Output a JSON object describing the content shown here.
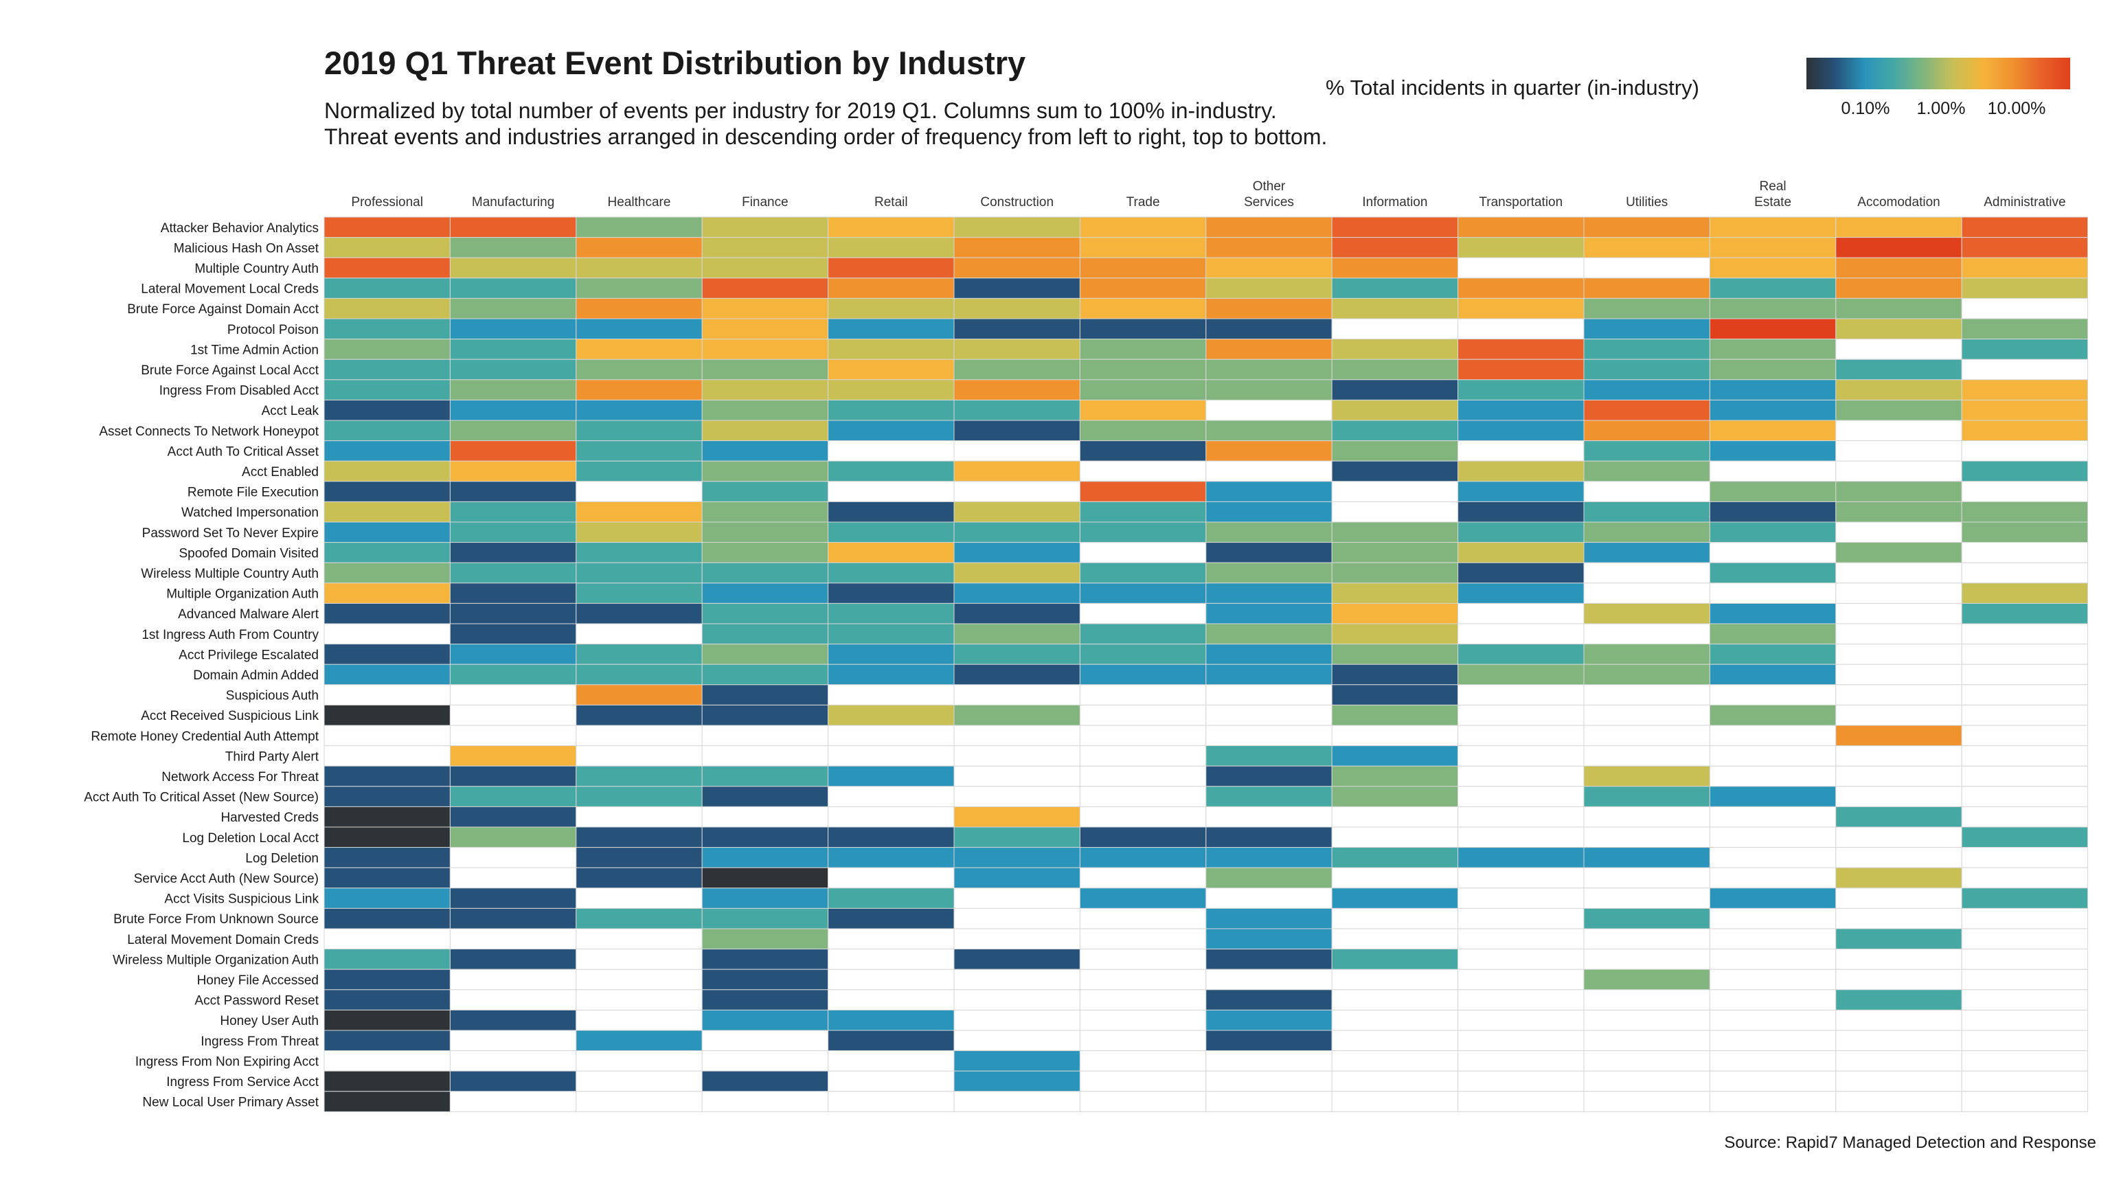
{
  "title": "2019 Q1 Threat Event Distribution by Industry",
  "subtitle": "Normalized by total number of events per industry for 2019 Q1. Columns sum to 100% in-industry.\nThreat events and industries arranged in descending order of frequency from left to right, top to bottom.",
  "legend": {
    "title": "% Total incidents in quarter (in-industry)",
    "ticks": [
      "0.10%",
      "1.00%",
      "10.00%"
    ],
    "colors": [
      "#2d3337",
      "#26527a",
      "#2a94bb",
      "#46a8a3",
      "#82b57e",
      "#c8bf55",
      "#f5b43b",
      "#f0932f",
      "#e8612a",
      "#e0411c"
    ]
  },
  "source": "Source: Rapid7 Managed Detection and Response",
  "chart_data": {
    "type": "heatmap",
    "scale": "log",
    "value_unit": "% of in-industry incidents (color level 0 = lowest … 9 = highest; null = none)",
    "columns": [
      "Professional",
      "Manufacturing",
      "Healthcare",
      "Finance",
      "Retail",
      "Construction",
      "Trade",
      "Other\nServices",
      "Information",
      "Transportation",
      "Utilities",
      "Real\nEstate",
      "Accomodation",
      "Administrative"
    ],
    "rows": [
      "Attacker Behavior Analytics",
      "Malicious Hash On Asset",
      "Multiple Country Auth",
      "Lateral Movement Local Creds",
      "Brute Force Against Domain Acct",
      "Protocol Poison",
      "1st Time Admin Action",
      "Brute Force Against Local Acct",
      "Ingress From Disabled Acct",
      "Acct Leak",
      "Asset Connects To Network Honeypot",
      "Acct Auth To Critical Asset",
      "Acct Enabled",
      "Remote File Execution",
      "Watched Impersonation",
      "Password Set To Never Expire",
      "Spoofed Domain Visited",
      "Wireless Multiple Country Auth",
      "Multiple Organization Auth",
      "Advanced Malware Alert",
      "1st Ingress Auth From Country",
      "Acct Privilege Escalated",
      "Domain Admin Added",
      "Suspicious Auth",
      "Acct Received Suspicious Link",
      "Remote Honey Credential Auth Attempt",
      "Third Party Alert",
      "Network Access For Threat",
      "Acct Auth To Critical Asset (New Source)",
      "Harvested Creds",
      "Log Deletion Local Acct",
      "Log Deletion",
      "Service Acct Auth (New Source)",
      "Acct Visits Suspicious Link",
      "Brute Force From Unknown Source",
      "Lateral Movement Domain Creds",
      "Wireless Multiple Organization Auth",
      "Honey File Accessed",
      "Acct Password Reset",
      "Honey User Auth",
      "Ingress From Threat",
      "Ingress From Non Expiring Acct",
      "Ingress From Service Acct",
      "New Local User Primary Asset"
    ],
    "levels": [
      [
        8,
        8,
        4,
        5,
        6,
        5,
        6,
        7,
        8,
        7,
        7,
        6,
        6,
        8
      ],
      [
        5,
        4,
        7,
        5,
        5,
        7,
        6,
        7,
        8,
        5,
        6,
        6,
        9,
        8
      ],
      [
        8,
        5,
        5,
        5,
        8,
        7,
        7,
        6,
        7,
        null,
        null,
        6,
        7,
        6
      ],
      [
        3,
        3,
        4,
        8,
        7,
        1,
        7,
        5,
        3,
        7,
        7,
        3,
        7,
        5
      ],
      [
        5,
        4,
        7,
        6,
        5,
        5,
        6,
        7,
        5,
        6,
        4,
        4,
        4,
        null
      ],
      [
        3,
        2,
        2,
        6,
        2,
        1,
        1,
        1,
        null,
        null,
        2,
        9,
        5,
        4
      ],
      [
        4,
        3,
        6,
        6,
        5,
        5,
        4,
        7,
        5,
        8,
        3,
        4,
        null,
        3
      ],
      [
        3,
        3,
        4,
        4,
        6,
        4,
        4,
        4,
        4,
        8,
        3,
        4,
        3,
        null
      ],
      [
        3,
        4,
        7,
        5,
        5,
        7,
        4,
        4,
        1,
        3,
        2,
        2,
        5,
        6
      ],
      [
        1,
        2,
        2,
        4,
        3,
        3,
        6,
        null,
        5,
        2,
        8,
        2,
        4,
        6
      ],
      [
        3,
        4,
        3,
        5,
        2,
        1,
        4,
        4,
        3,
        2,
        7,
        6,
        null,
        6
      ],
      [
        2,
        8,
        3,
        2,
        null,
        null,
        1,
        7,
        4,
        null,
        3,
        2,
        null,
        null
      ],
      [
        5,
        6,
        3,
        4,
        3,
        6,
        null,
        null,
        1,
        5,
        4,
        null,
        null,
        3
      ],
      [
        1,
        1,
        null,
        3,
        null,
        null,
        8,
        2,
        null,
        2,
        null,
        4,
        4,
        null
      ],
      [
        5,
        3,
        6,
        4,
        1,
        5,
        3,
        2,
        null,
        1,
        3,
        1,
        4,
        4
      ],
      [
        2,
        3,
        5,
        4,
        3,
        3,
        3,
        4,
        4,
        3,
        4,
        3,
        null,
        4
      ],
      [
        3,
        1,
        3,
        4,
        6,
        2,
        null,
        1,
        4,
        5,
        2,
        null,
        4,
        null
      ],
      [
        4,
        3,
        3,
        3,
        3,
        5,
        3,
        4,
        4,
        1,
        null,
        3,
        null,
        null
      ],
      [
        6,
        1,
        3,
        2,
        1,
        2,
        2,
        2,
        5,
        2,
        null,
        null,
        null,
        5
      ],
      [
        1,
        1,
        1,
        3,
        3,
        1,
        null,
        2,
        6,
        null,
        5,
        2,
        null,
        3
      ],
      [
        null,
        1,
        null,
        3,
        3,
        4,
        3,
        4,
        5,
        null,
        null,
        4,
        null,
        null
      ],
      [
        1,
        2,
        3,
        4,
        2,
        3,
        3,
        2,
        4,
        3,
        4,
        3,
        null,
        null
      ],
      [
        2,
        3,
        3,
        3,
        2,
        1,
        2,
        2,
        1,
        4,
        4,
        2,
        null,
        null
      ],
      [
        null,
        null,
        7,
        1,
        null,
        null,
        null,
        null,
        1,
        null,
        null,
        null,
        null,
        null
      ],
      [
        0,
        null,
        1,
        1,
        5,
        4,
        null,
        null,
        4,
        null,
        null,
        4,
        null,
        null
      ],
      [
        null,
        null,
        null,
        null,
        null,
        null,
        null,
        null,
        null,
        null,
        null,
        null,
        7,
        null
      ],
      [
        null,
        6,
        null,
        null,
        null,
        null,
        null,
        3,
        2,
        null,
        null,
        null,
        null,
        null
      ],
      [
        1,
        1,
        3,
        3,
        2,
        null,
        null,
        1,
        4,
        null,
        5,
        null,
        null,
        null
      ],
      [
        1,
        3,
        3,
        1,
        null,
        null,
        null,
        3,
        4,
        null,
        3,
        2,
        null,
        null
      ],
      [
        0,
        1,
        null,
        null,
        null,
        6,
        null,
        null,
        null,
        null,
        null,
        null,
        3,
        null
      ],
      [
        0,
        4,
        1,
        1,
        1,
        3,
        1,
        1,
        null,
        null,
        null,
        null,
        null,
        3
      ],
      [
        1,
        null,
        1,
        2,
        2,
        2,
        2,
        2,
        3,
        2,
        2,
        null,
        null,
        null
      ],
      [
        1,
        null,
        1,
        0,
        null,
        2,
        null,
        4,
        null,
        null,
        null,
        null,
        5,
        null
      ],
      [
        2,
        1,
        null,
        2,
        3,
        null,
        2,
        null,
        2,
        null,
        null,
        2,
        null,
        3
      ],
      [
        1,
        1,
        3,
        3,
        1,
        null,
        null,
        2,
        null,
        null,
        3,
        null,
        null,
        null
      ],
      [
        null,
        null,
        null,
        4,
        null,
        null,
        null,
        2,
        null,
        null,
        null,
        null,
        3,
        null
      ],
      [
        3,
        1,
        null,
        1,
        null,
        1,
        null,
        1,
        3,
        null,
        null,
        null,
        null,
        null
      ],
      [
        1,
        null,
        null,
        1,
        null,
        null,
        null,
        null,
        null,
        null,
        4,
        null,
        null,
        null
      ],
      [
        1,
        null,
        null,
        1,
        null,
        null,
        null,
        1,
        null,
        null,
        null,
        null,
        3,
        null
      ],
      [
        0,
        1,
        null,
        2,
        2,
        null,
        null,
        2,
        null,
        null,
        null,
        null,
        null,
        null
      ],
      [
        1,
        null,
        2,
        null,
        1,
        null,
        null,
        1,
        null,
        null,
        null,
        null,
        null,
        null
      ],
      [
        null,
        null,
        null,
        null,
        null,
        2,
        null,
        null,
        null,
        null,
        null,
        null,
        null,
        null
      ],
      [
        0,
        1,
        null,
        1,
        null,
        2,
        null,
        null,
        null,
        null,
        null,
        null,
        null,
        null
      ],
      [
        0,
        null,
        null,
        null,
        null,
        null,
        null,
        null,
        null,
        null,
        null,
        null,
        null,
        null
      ]
    ]
  }
}
